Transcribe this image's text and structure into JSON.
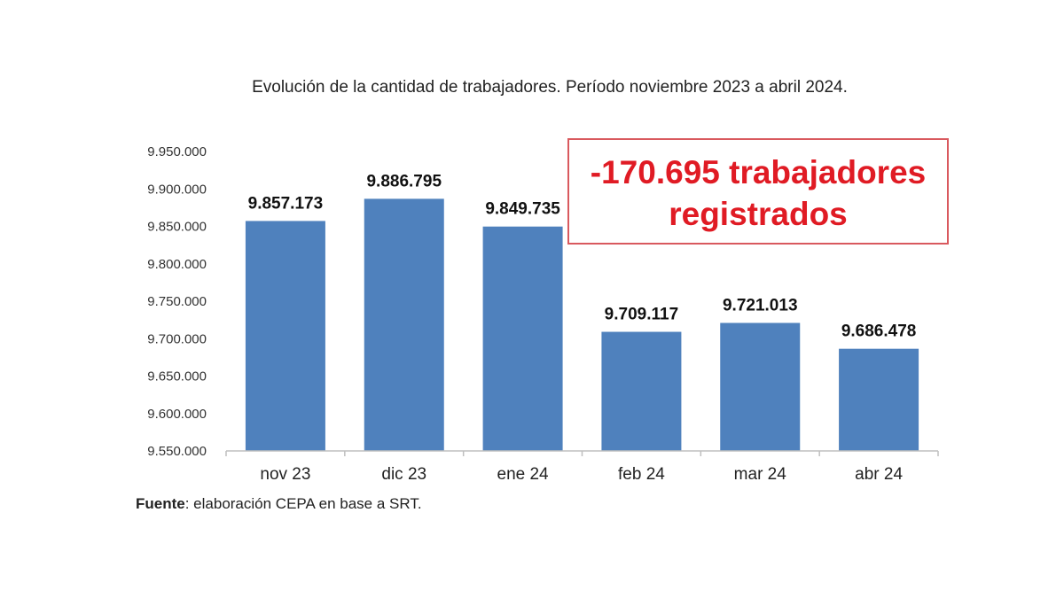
{
  "chart_data": {
    "type": "bar",
    "title": "Evolución de la cantidad de trabajadores.  Período noviembre 2023 a abril 2024.",
    "categories": [
      "nov 23",
      "dic 23",
      "ene 24",
      "feb 24",
      "mar 24",
      "abr 24"
    ],
    "values": [
      9857173,
      9886795,
      9849735,
      9709117,
      9721013,
      9686478
    ],
    "data_labels": [
      "9.857.173",
      "9.886.795",
      "9.849.735",
      "9.709.117",
      "9.721.013",
      "9.686.478"
    ],
    "ylim": [
      9550000,
      9950000
    ],
    "yticks": [
      9550000,
      9600000,
      9650000,
      9700000,
      9750000,
      9800000,
      9850000,
      9900000,
      9950000
    ],
    "ytick_labels": [
      "9.550.000",
      "9.600.000",
      "9.650.000",
      "9.700.000",
      "9.750.000",
      "9.800.000",
      "9.850.000",
      "9.900.000",
      "9.950.000"
    ],
    "grid": false,
    "bar_color": "#4f81bd"
  },
  "callout": {
    "line1": "-170.695 trabajadores",
    "line2": "registrados",
    "text_color": "#e01b24",
    "border_color": "#d9595e"
  },
  "source": {
    "label": "Fuente",
    "text": ": elaboración CEPA en base a SRT."
  }
}
